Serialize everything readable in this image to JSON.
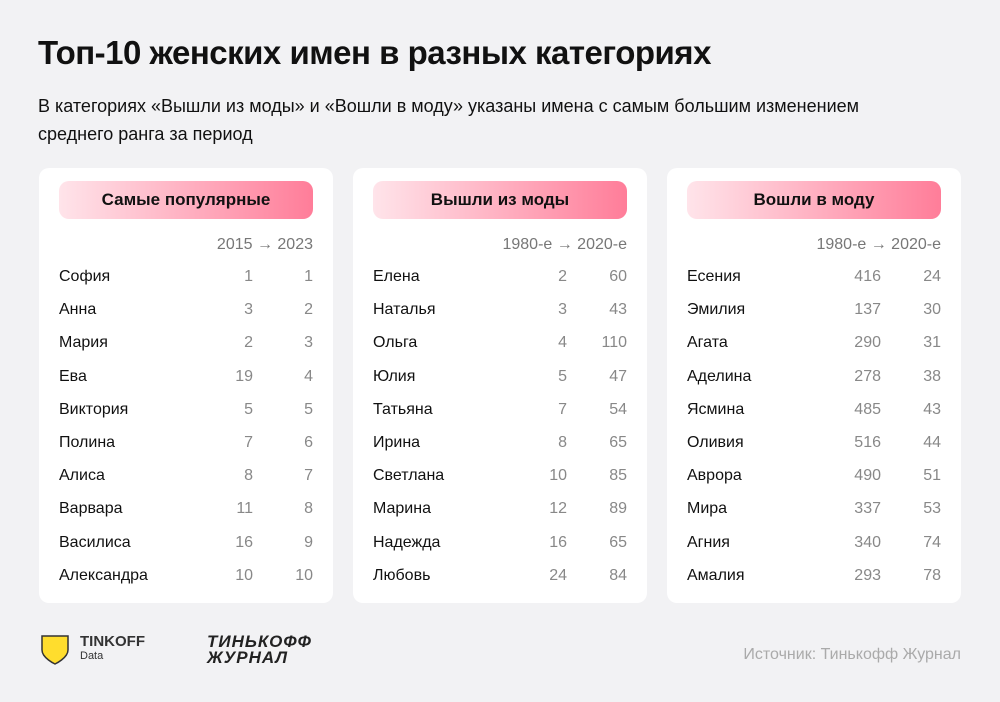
{
  "header": {
    "title": "Топ-10 женских имен в разных категориях",
    "subtitle": "В категориях «Вышли из моды» и «Вошли в моду» указаны имена с самым большим изменением среднего ранга за период"
  },
  "panels": [
    {
      "title": "Самые популярные",
      "columns": "2015 → 2023",
      "rows": [
        [
          "София",
          1,
          1
        ],
        [
          "Анна",
          3,
          2
        ],
        [
          "Мария",
          2,
          3
        ],
        [
          "Ева",
          19,
          4
        ],
        [
          "Виктория",
          5,
          5
        ],
        [
          "Полина",
          7,
          6
        ],
        [
          "Алиса",
          8,
          7
        ],
        [
          "Варвара",
          11,
          8
        ],
        [
          "Василиса",
          16,
          9
        ],
        [
          "Александра",
          10,
          10
        ]
      ]
    },
    {
      "title": "Вышли из моды",
      "columns": "1980-е → 2020-е",
      "rows": [
        [
          "Елена",
          2,
          60
        ],
        [
          "Наталья",
          3,
          43
        ],
        [
          "Ольга",
          4,
          110
        ],
        [
          "Юлия",
          5,
          47
        ],
        [
          "Татьяна",
          7,
          54
        ],
        [
          "Ирина",
          8,
          65
        ],
        [
          "Светлана",
          10,
          85
        ],
        [
          "Марина",
          12,
          89
        ],
        [
          "Надежда",
          16,
          65
        ],
        [
          "Любовь",
          24,
          84
        ]
      ]
    },
    {
      "title": "Вошли в моду",
      "columns": "1980-е → 2020-е",
      "rows": [
        [
          "Есения",
          416,
          24
        ],
        [
          "Эмилия",
          137,
          30
        ],
        [
          "Агата",
          290,
          31
        ],
        [
          "Аделина",
          278,
          38
        ],
        [
          "Ясмина",
          485,
          43
        ],
        [
          "Оливия",
          516,
          44
        ],
        [
          "Аврора",
          490,
          51
        ],
        [
          "Мира",
          337,
          53
        ],
        [
          "Агния",
          340,
          74
        ],
        [
          "Амалия",
          293,
          78
        ]
      ]
    }
  ],
  "footer": {
    "logo1": "TINKOFF",
    "logo1_sub": "Data",
    "logo2_line1": "ТИНЬКОФФ",
    "logo2_line2": "ЖУРНАЛ",
    "source": "Источник: Тинькофф Журнал"
  }
}
